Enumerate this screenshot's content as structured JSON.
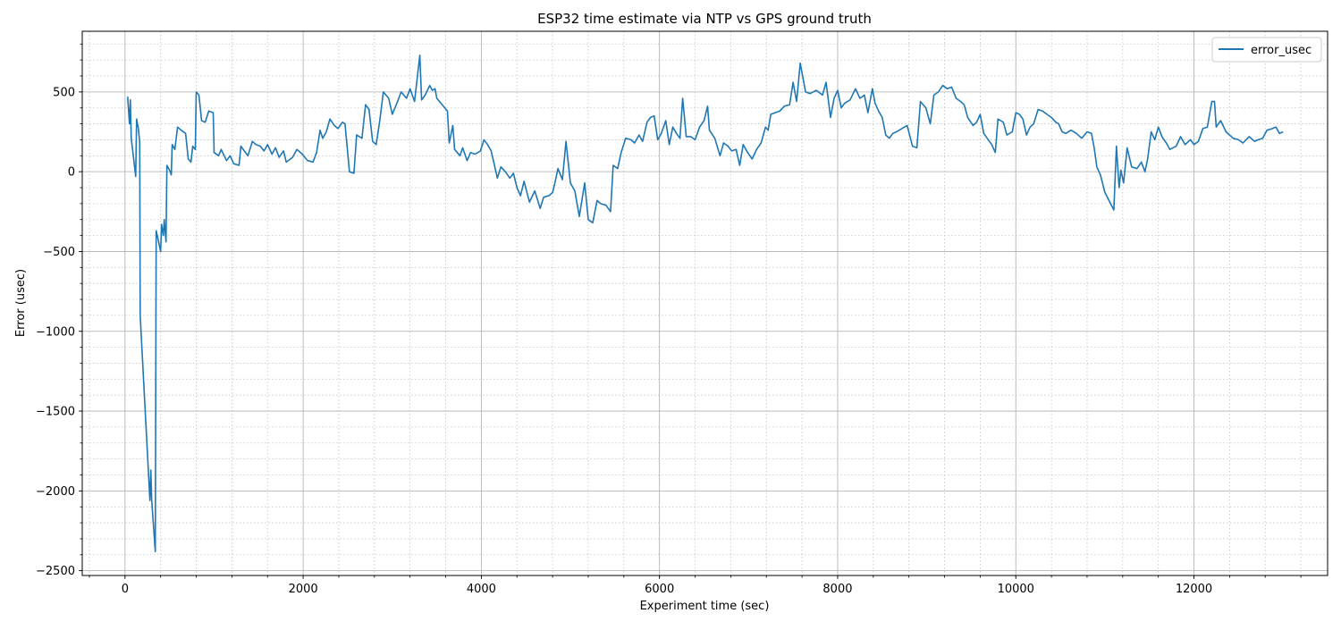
{
  "chart_data": {
    "type": "line",
    "title": "ESP32 time estimate via NTP vs GPS ground truth",
    "xlabel": "Experiment time (sec)",
    "ylabel": "Error (usec)",
    "xlim": [
      -480,
      13500
    ],
    "ylim": [
      -2530,
      880
    ],
    "x_ticks": [
      0,
      2000,
      4000,
      6000,
      8000,
      10000,
      12000
    ],
    "x_tick_labels": [
      "0",
      "2000",
      "4000",
      "6000",
      "8000",
      "10000",
      "12000"
    ],
    "x_minor_step": 400,
    "y_ticks": [
      -2500,
      -2000,
      -1500,
      -1000,
      -500,
      0,
      500
    ],
    "y_tick_labels": [
      "−2500",
      "−2000",
      "−1500",
      "−1000",
      "−500",
      "0",
      "500"
    ],
    "y_minor_step": 100,
    "grid": {
      "major": true,
      "minor": true
    },
    "legend": {
      "position": "top-right"
    },
    "colors": {
      "series": "#1f77b4",
      "major_grid": "#b0b0b0",
      "minor_grid": "#c4c4c4"
    },
    "series": [
      {
        "name": "error_usec",
        "points": [
          [
            30,
            470
          ],
          [
            50,
            300
          ],
          [
            60,
            450
          ],
          [
            70,
            210
          ],
          [
            120,
            -30
          ],
          [
            130,
            330
          ],
          [
            150,
            270
          ],
          [
            165,
            180
          ],
          [
            170,
            -900
          ],
          [
            280,
            -2060
          ],
          [
            290,
            -1870
          ],
          [
            300,
            -2060
          ],
          [
            340,
            -2380
          ],
          [
            350,
            -370
          ],
          [
            370,
            -420
          ],
          [
            400,
            -500
          ],
          [
            410,
            -330
          ],
          [
            430,
            -400
          ],
          [
            440,
            -300
          ],
          [
            460,
            -440
          ],
          [
            470,
            40
          ],
          [
            500,
            10
          ],
          [
            520,
            -20
          ],
          [
            530,
            170
          ],
          [
            560,
            140
          ],
          [
            590,
            280
          ],
          [
            630,
            260
          ],
          [
            680,
            240
          ],
          [
            710,
            80
          ],
          [
            740,
            60
          ],
          [
            760,
            160
          ],
          [
            790,
            140
          ],
          [
            800,
            500
          ],
          [
            830,
            480
          ],
          [
            860,
            320
          ],
          [
            900,
            310
          ],
          [
            940,
            380
          ],
          [
            990,
            370
          ],
          [
            1000,
            120
          ],
          [
            1050,
            100
          ],
          [
            1080,
            140
          ],
          [
            1140,
            70
          ],
          [
            1180,
            100
          ],
          [
            1220,
            50
          ],
          [
            1280,
            40
          ],
          [
            1300,
            160
          ],
          [
            1340,
            130
          ],
          [
            1380,
            100
          ],
          [
            1430,
            190
          ],
          [
            1470,
            170
          ],
          [
            1520,
            160
          ],
          [
            1560,
            130
          ],
          [
            1600,
            170
          ],
          [
            1650,
            110
          ],
          [
            1690,
            150
          ],
          [
            1730,
            90
          ],
          [
            1780,
            130
          ],
          [
            1810,
            60
          ],
          [
            1880,
            90
          ],
          [
            1930,
            140
          ],
          [
            1990,
            110
          ],
          [
            2050,
            70
          ],
          [
            2110,
            60
          ],
          [
            2150,
            120
          ],
          [
            2190,
            260
          ],
          [
            2220,
            210
          ],
          [
            2260,
            250
          ],
          [
            2300,
            330
          ],
          [
            2350,
            290
          ],
          [
            2390,
            270
          ],
          [
            2440,
            310
          ],
          [
            2470,
            300
          ],
          [
            2520,
            0
          ],
          [
            2570,
            -10
          ],
          [
            2600,
            230
          ],
          [
            2660,
            210
          ],
          [
            2700,
            420
          ],
          [
            2740,
            390
          ],
          [
            2780,
            190
          ],
          [
            2820,
            170
          ],
          [
            2860,
            320
          ],
          [
            2900,
            500
          ],
          [
            2960,
            460
          ],
          [
            3000,
            360
          ],
          [
            3060,
            440
          ],
          [
            3100,
            500
          ],
          [
            3160,
            460
          ],
          [
            3200,
            520
          ],
          [
            3250,
            440
          ],
          [
            3310,
            730
          ],
          [
            3330,
            450
          ],
          [
            3370,
            480
          ],
          [
            3420,
            540
          ],
          [
            3450,
            510
          ],
          [
            3480,
            520
          ],
          [
            3500,
            460
          ],
          [
            3560,
            420
          ],
          [
            3620,
            380
          ],
          [
            3640,
            180
          ],
          [
            3680,
            290
          ],
          [
            3700,
            140
          ],
          [
            3760,
            100
          ],
          [
            3790,
            150
          ],
          [
            3840,
            70
          ],
          [
            3880,
            120
          ],
          [
            3930,
            110
          ],
          [
            3990,
            130
          ],
          [
            4030,
            200
          ],
          [
            4070,
            170
          ],
          [
            4110,
            130
          ],
          [
            4140,
            60
          ],
          [
            4180,
            -40
          ],
          [
            4220,
            30
          ],
          [
            4270,
            0
          ],
          [
            4320,
            -40
          ],
          [
            4360,
            -10
          ],
          [
            4400,
            -100
          ],
          [
            4440,
            -150
          ],
          [
            4480,
            -60
          ],
          [
            4540,
            -190
          ],
          [
            4600,
            -120
          ],
          [
            4660,
            -230
          ],
          [
            4700,
            -160
          ],
          [
            4760,
            -150
          ],
          [
            4800,
            -130
          ],
          [
            4830,
            -60
          ],
          [
            4860,
            20
          ],
          [
            4910,
            -50
          ],
          [
            4950,
            190
          ],
          [
            5000,
            -70
          ],
          [
            5050,
            -120
          ],
          [
            5100,
            -280
          ],
          [
            5160,
            -70
          ],
          [
            5200,
            -300
          ],
          [
            5250,
            -320
          ],
          [
            5300,
            -180
          ],
          [
            5340,
            -200
          ],
          [
            5400,
            -210
          ],
          [
            5450,
            -250
          ],
          [
            5480,
            40
          ],
          [
            5530,
            20
          ],
          [
            5570,
            120
          ],
          [
            5620,
            210
          ],
          [
            5680,
            200
          ],
          [
            5720,
            180
          ],
          [
            5770,
            230
          ],
          [
            5810,
            190
          ],
          [
            5860,
            310
          ],
          [
            5900,
            340
          ],
          [
            5940,
            350
          ],
          [
            5980,
            200
          ],
          [
            6020,
            240
          ],
          [
            6070,
            320
          ],
          [
            6110,
            170
          ],
          [
            6150,
            280
          ],
          [
            6190,
            240
          ],
          [
            6230,
            210
          ],
          [
            6260,
            460
          ],
          [
            6300,
            220
          ],
          [
            6350,
            220
          ],
          [
            6400,
            200
          ],
          [
            6450,
            280
          ],
          [
            6500,
            320
          ],
          [
            6540,
            410
          ],
          [
            6560,
            260
          ],
          [
            6620,
            210
          ],
          [
            6680,
            100
          ],
          [
            6720,
            180
          ],
          [
            6770,
            160
          ],
          [
            6810,
            130
          ],
          [
            6860,
            140
          ],
          [
            6900,
            40
          ],
          [
            6940,
            170
          ],
          [
            6990,
            120
          ],
          [
            7040,
            80
          ],
          [
            7090,
            140
          ],
          [
            7140,
            180
          ],
          [
            7190,
            280
          ],
          [
            7220,
            260
          ],
          [
            7250,
            360
          ],
          [
            7300,
            370
          ],
          [
            7350,
            380
          ],
          [
            7400,
            410
          ],
          [
            7460,
            420
          ],
          [
            7500,
            560
          ],
          [
            7540,
            440
          ],
          [
            7580,
            680
          ],
          [
            7640,
            500
          ],
          [
            7690,
            490
          ],
          [
            7760,
            510
          ],
          [
            7830,
            480
          ],
          [
            7870,
            560
          ],
          [
            7920,
            340
          ],
          [
            7960,
            460
          ],
          [
            8000,
            510
          ],
          [
            8040,
            400
          ],
          [
            8080,
            430
          ],
          [
            8140,
            450
          ],
          [
            8200,
            520
          ],
          [
            8250,
            460
          ],
          [
            8300,
            480
          ],
          [
            8340,
            370
          ],
          [
            8390,
            520
          ],
          [
            8420,
            430
          ],
          [
            8460,
            380
          ],
          [
            8500,
            340
          ],
          [
            8540,
            230
          ],
          [
            8580,
            210
          ],
          [
            8620,
            240
          ],
          [
            8660,
            250
          ],
          [
            8720,
            270
          ],
          [
            8780,
            290
          ],
          [
            8840,
            160
          ],
          [
            8890,
            150
          ],
          [
            8930,
            440
          ],
          [
            8990,
            400
          ],
          [
            9040,
            300
          ],
          [
            9080,
            480
          ],
          [
            9130,
            500
          ],
          [
            9180,
            540
          ],
          [
            9230,
            520
          ],
          [
            9280,
            530
          ],
          [
            9330,
            460
          ],
          [
            9380,
            440
          ],
          [
            9420,
            420
          ],
          [
            9460,
            340
          ],
          [
            9520,
            290
          ],
          [
            9560,
            310
          ],
          [
            9600,
            360
          ],
          [
            9640,
            240
          ],
          [
            9690,
            200
          ],
          [
            9730,
            170
          ],
          [
            9770,
            120
          ],
          [
            9800,
            330
          ],
          [
            9830,
            320
          ],
          [
            9860,
            310
          ],
          [
            9900,
            230
          ],
          [
            9960,
            250
          ],
          [
            10000,
            370
          ],
          [
            10040,
            360
          ],
          [
            10080,
            330
          ],
          [
            10120,
            230
          ],
          [
            10160,
            280
          ],
          [
            10200,
            300
          ],
          [
            10250,
            390
          ],
          [
            10300,
            380
          ],
          [
            10350,
            360
          ],
          [
            10400,
            340
          ],
          [
            10450,
            310
          ],
          [
            10480,
            300
          ],
          [
            10520,
            250
          ],
          [
            10560,
            240
          ],
          [
            10620,
            260
          ],
          [
            10680,
            240
          ],
          [
            10740,
            210
          ],
          [
            10800,
            250
          ],
          [
            10850,
            240
          ],
          [
            10880,
            150
          ],
          [
            10910,
            30
          ],
          [
            10950,
            -20
          ],
          [
            11000,
            -130
          ],
          [
            11100,
            -240
          ],
          [
            11130,
            160
          ],
          [
            11160,
            -100
          ],
          [
            11180,
            10
          ],
          [
            11210,
            -70
          ],
          [
            11250,
            150
          ],
          [
            11300,
            30
          ],
          [
            11360,
            20
          ],
          [
            11410,
            60
          ],
          [
            11450,
            0
          ],
          [
            11480,
            80
          ],
          [
            11520,
            250
          ],
          [
            11560,
            200
          ],
          [
            11600,
            280
          ],
          [
            11640,
            220
          ],
          [
            11690,
            180
          ],
          [
            11730,
            140
          ],
          [
            11800,
            160
          ],
          [
            11850,
            220
          ],
          [
            11900,
            170
          ],
          [
            11960,
            200
          ],
          [
            12000,
            170
          ],
          [
            12050,
            190
          ],
          [
            12100,
            270
          ],
          [
            12150,
            280
          ],
          [
            12200,
            440
          ],
          [
            12230,
            440
          ],
          [
            12250,
            280
          ],
          [
            12300,
            320
          ],
          [
            12360,
            250
          ],
          [
            12440,
            210
          ],
          [
            12500,
            200
          ],
          [
            12550,
            180
          ],
          [
            12620,
            220
          ],
          [
            12680,
            190
          ],
          [
            12720,
            200
          ],
          [
            12770,
            210
          ],
          [
            12820,
            260
          ],
          [
            12880,
            270
          ],
          [
            12920,
            280
          ],
          [
            12960,
            240
          ],
          [
            13000,
            250
          ]
        ]
      }
    ]
  }
}
